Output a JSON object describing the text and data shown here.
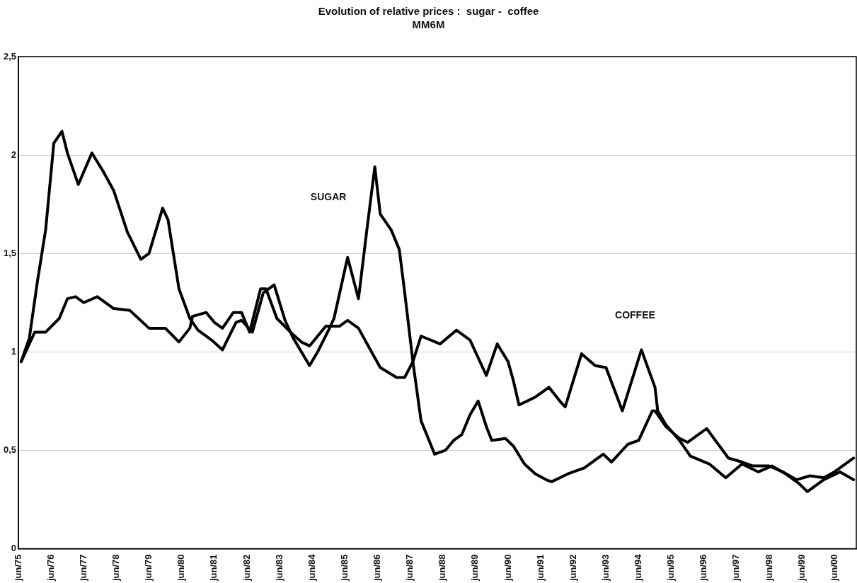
{
  "chart_data": {
    "type": "line",
    "title": "Evolution of relative prices :  sugar -  coffee",
    "subtitle": "MM6M",
    "xlim": [
      "1975-06",
      "2001-02"
    ],
    "xticks": [
      {
        "value": "1975-06",
        "label": "jun/75"
      },
      {
        "value": "1976-06",
        "label": "jun/76"
      },
      {
        "value": "1977-06",
        "label": "jun/77"
      },
      {
        "value": "1978-06",
        "label": "jun/78"
      },
      {
        "value": "1979-06",
        "label": "jun/79"
      },
      {
        "value": "1980-06",
        "label": "jun/80"
      },
      {
        "value": "1981-06",
        "label": "jun/81"
      },
      {
        "value": "1982-06",
        "label": "jun/82"
      },
      {
        "value": "1983-06",
        "label": "jun/83"
      },
      {
        "value": "1984-06",
        "label": "jun/84"
      },
      {
        "value": "1985-06",
        "label": "jun/85"
      },
      {
        "value": "1986-06",
        "label": "jun/86"
      },
      {
        "value": "1987-06",
        "label": "jun/87"
      },
      {
        "value": "1988-06",
        "label": "jun/88"
      },
      {
        "value": "1989-06",
        "label": "jun/89"
      },
      {
        "value": "1990-06",
        "label": "jun/90"
      },
      {
        "value": "1991-06",
        "label": "jun/91"
      },
      {
        "value": "1992-06",
        "label": "jun/92"
      },
      {
        "value": "1993-06",
        "label": "jun/93"
      },
      {
        "value": "1994-06",
        "label": "jun/94"
      },
      {
        "value": "1995-06",
        "label": "jun/95"
      },
      {
        "value": "1996-06",
        "label": "jun/96"
      },
      {
        "value": "1997-06",
        "label": "jun/97"
      },
      {
        "value": "1998-06",
        "label": "jun/98"
      },
      {
        "value": "1999-06",
        "label": "jun/99"
      },
      {
        "value": "2000-06",
        "label": "jun/00"
      }
    ],
    "ylim": [
      0,
      2.5
    ],
    "yticks": [
      {
        "value": 0,
        "label": "0"
      },
      {
        "value": 0.5,
        "label": "0,5"
      },
      {
        "value": 1,
        "label": "1"
      },
      {
        "value": 1.5,
        "label": "1,5"
      },
      {
        "value": 2,
        "label": "2"
      },
      {
        "value": 2.5,
        "label": "2,5"
      }
    ],
    "grid": "y",
    "legend": false,
    "marker": "none",
    "line_style": "solid",
    "series": [
      {
        "color": "#000000",
        "x": [
          "1975-07",
          "1975-10",
          "1976-01",
          "1976-04",
          "1976-07",
          "1976-10",
          "1976-12",
          "1977-04",
          "1977-09",
          "1978-01",
          "1978-05",
          "1978-10",
          "1979-03",
          "1979-06",
          "1979-11",
          "1980-01",
          "1980-05",
          "1980-09",
          "1980-12",
          "1981-05",
          "1981-09",
          "1982-02",
          "1982-04",
          "1982-08",
          "1982-12",
          "1983-04",
          "1983-08",
          "1983-11",
          "1984-05",
          "1984-08",
          "1984-12",
          "1985-02",
          "1985-07",
          "1985-11",
          "1986-02",
          "1986-05",
          "1986-07",
          "1986-11",
          "1987-02",
          "1987-04",
          "1987-07",
          "1987-10",
          "1988-03",
          "1988-07",
          "1988-10",
          "1989-01",
          "1989-04",
          "1989-07",
          "1989-10",
          "1989-12",
          "1990-05",
          "1990-08",
          "1990-12",
          "1991-04",
          "1991-08",
          "1991-10",
          "1992-04",
          "1992-10",
          "1993-05",
          "1993-08",
          "1994-02",
          "1994-06",
          "1994-11",
          "1994-12",
          "1995-04",
          "1995-09",
          "1995-12",
          "1996-07",
          "1997-03",
          "1997-08",
          "1997-12",
          "1998-06",
          "1998-11",
          "1999-04",
          "1999-09",
          "2000-02",
          "2000-06",
          "2001-01"
        ],
        "values": [
          0.95,
          1.07,
          1.36,
          1.62,
          2.06,
          2.12,
          2.01,
          1.85,
          2.01,
          1.92,
          1.82,
          1.61,
          1.47,
          1.5,
          1.73,
          1.67,
          1.32,
          1.17,
          1.11,
          1.06,
          1.01,
          1.15,
          1.16,
          1.1,
          1.3,
          1.34,
          1.16,
          1.07,
          0.93,
          1.0,
          1.11,
          1.17,
          1.48,
          1.27,
          1.61,
          1.94,
          1.7,
          1.62,
          1.52,
          1.3,
          0.95,
          0.65,
          0.48,
          0.5,
          0.55,
          0.58,
          0.68,
          0.75,
          0.62,
          0.55,
          0.56,
          0.52,
          0.43,
          0.38,
          0.35,
          0.34,
          0.38,
          0.41,
          0.48,
          0.44,
          0.53,
          0.55,
          0.7,
          0.7,
          0.62,
          0.56,
          0.54,
          0.61,
          0.46,
          0.44,
          0.42,
          0.42,
          0.39,
          0.35,
          0.37,
          0.36,
          0.39,
          0.46
        ]
      },
      {
        "color": "#000000",
        "x": [
          "1975-07",
          "1975-12",
          "1976-04",
          "1976-09",
          "1976-12",
          "1977-03",
          "1977-06",
          "1977-11",
          "1978-05",
          "1978-11",
          "1979-06",
          "1979-12",
          "1980-05",
          "1980-09",
          "1980-10",
          "1981-03",
          "1981-06",
          "1981-09",
          "1982-01",
          "1982-04",
          "1982-07",
          "1982-11",
          "1983-01",
          "1983-05",
          "1983-10",
          "1984-02",
          "1984-05",
          "1984-11",
          "1985-04",
          "1985-07",
          "1985-11",
          "1986-03",
          "1986-07",
          "1987-01",
          "1987-04",
          "1987-07",
          "1987-10",
          "1988-05",
          "1988-11",
          "1989-04",
          "1989-10",
          "1990-02",
          "1990-06",
          "1990-08",
          "1990-10",
          "1991-04",
          "1991-09",
          "1992-01",
          "1992-03",
          "1992-09",
          "1993-02",
          "1993-06",
          "1993-12",
          "1994-07",
          "1994-12",
          "1995-01",
          "1995-04",
          "1995-09",
          "1996-01",
          "1996-08",
          "1997-02",
          "1997-08",
          "1998-02",
          "1998-07",
          "1998-12",
          "1999-05",
          "1999-08",
          "2000-02",
          "2000-08",
          "2001-01"
        ],
        "values": [
          0.95,
          1.1,
          1.1,
          1.17,
          1.27,
          1.28,
          1.25,
          1.28,
          1.22,
          1.21,
          1.12,
          1.12,
          1.05,
          1.12,
          1.18,
          1.2,
          1.15,
          1.12,
          1.2,
          1.2,
          1.1,
          1.32,
          1.32,
          1.17,
          1.1,
          1.05,
          1.03,
          1.13,
          1.13,
          1.16,
          1.12,
          1.02,
          0.92,
          0.87,
          0.87,
          0.95,
          1.08,
          1.04,
          1.11,
          1.06,
          0.88,
          1.04,
          0.95,
          0.85,
          0.73,
          0.77,
          0.82,
          0.75,
          0.72,
          0.99,
          0.93,
          0.92,
          0.7,
          1.01,
          0.82,
          0.7,
          0.63,
          0.55,
          0.47,
          0.43,
          0.36,
          0.43,
          0.39,
          0.42,
          0.38,
          0.33,
          0.29,
          0.35,
          0.39,
          0.35
        ]
      }
    ],
    "annotations": [
      "SUGAR",
      "COFFEE"
    ]
  }
}
